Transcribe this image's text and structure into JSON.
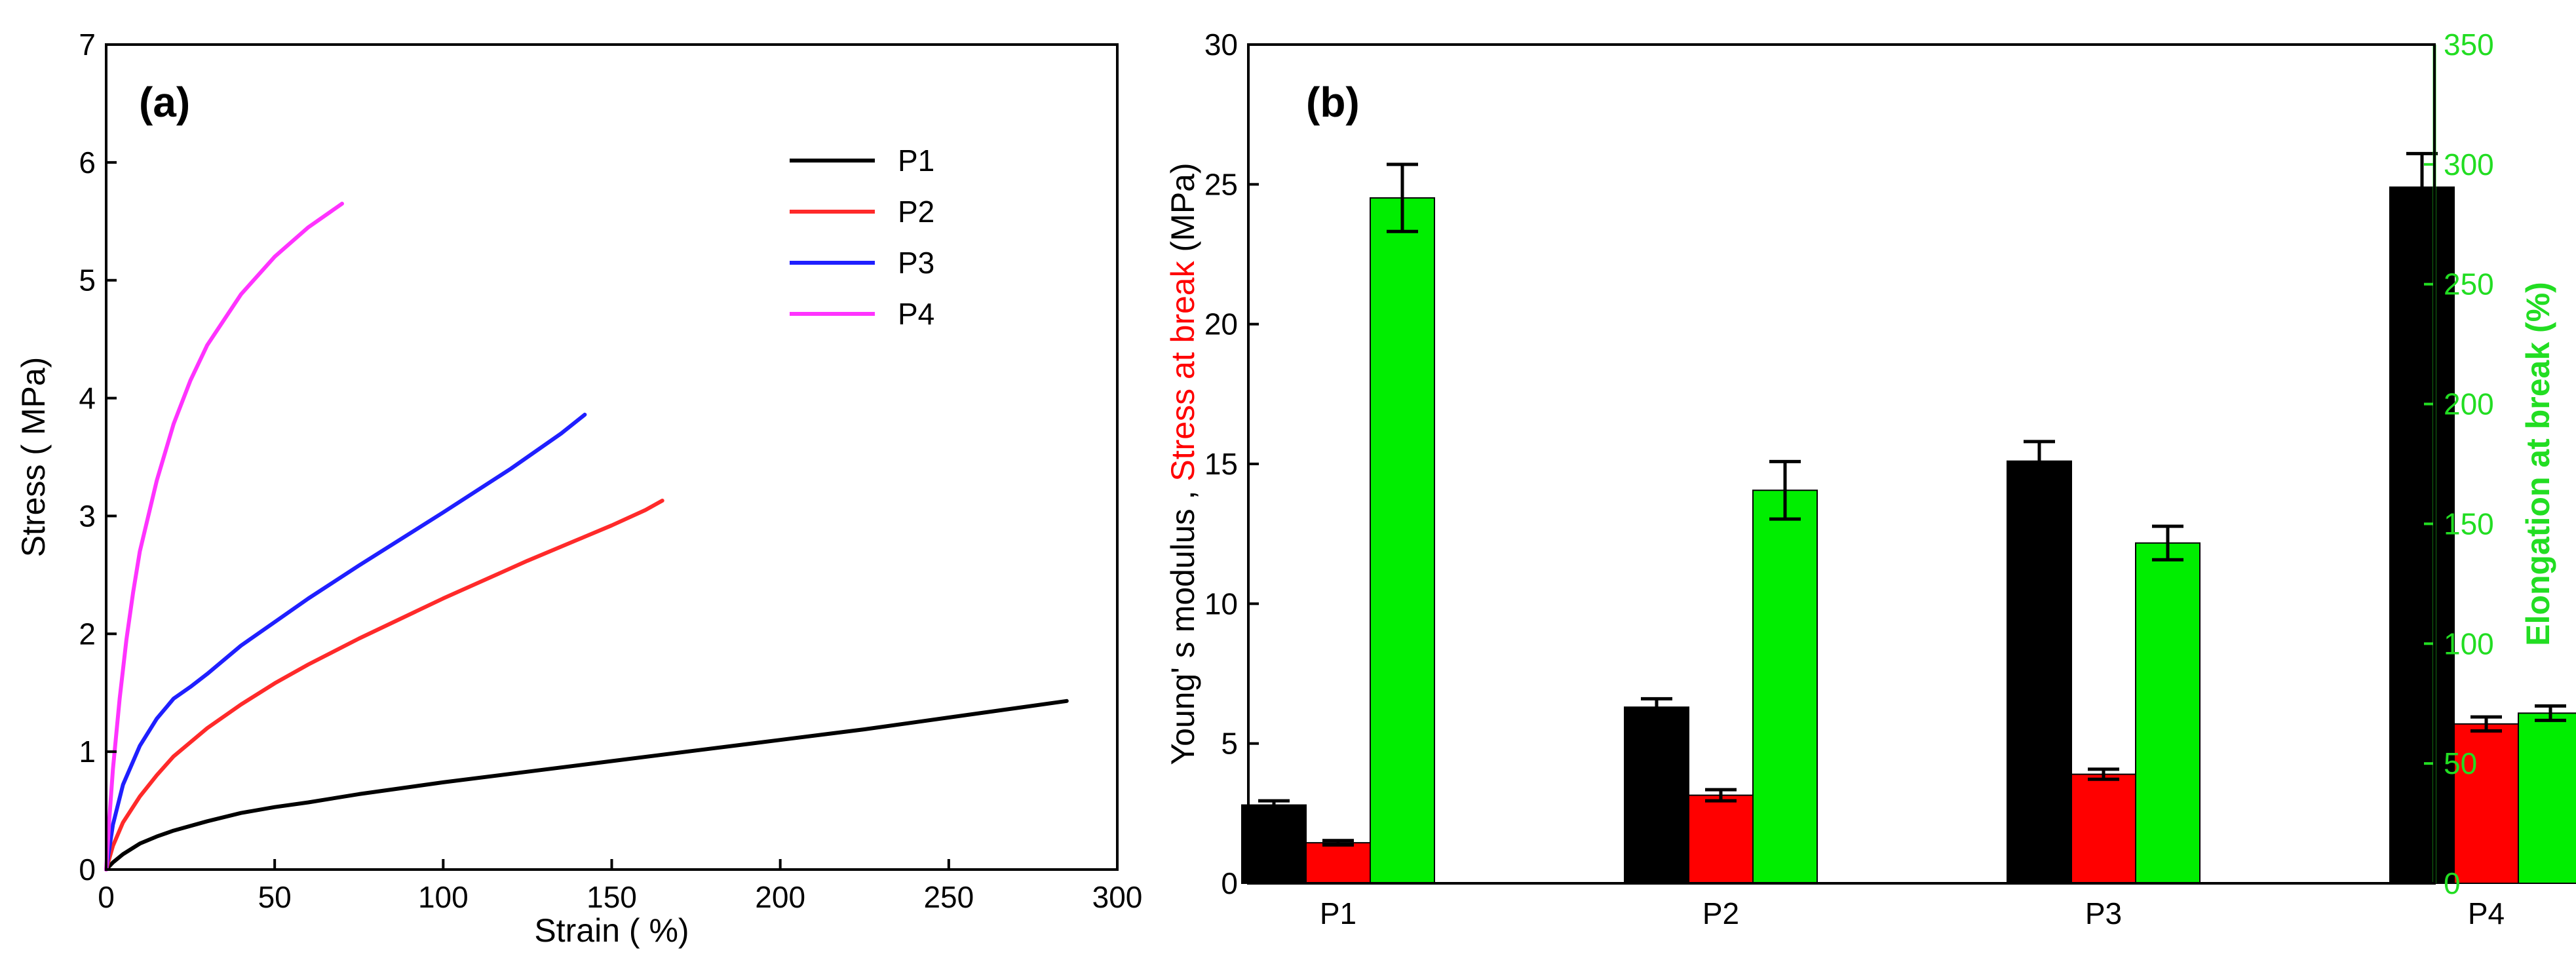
{
  "colors": {
    "P1": "#000000",
    "P2": "#ff2a2a",
    "P3": "#1f1fff",
    "P4": "#ff33ff",
    "bar_modulus": "#000000",
    "bar_stress": "#ff0000",
    "bar_elongation": "#00ee00",
    "stress_label": "#ff0000",
    "right_axis": "#22dd22"
  },
  "chart_data": [
    {
      "type": "line",
      "panel_label": "(a)",
      "title": "",
      "xlabel": "Strain ( %)",
      "ylabel": "Stress ( MPa)",
      "xlim": [
        0,
        300
      ],
      "ylim": [
        0,
        7
      ],
      "xticks": [
        "0",
        "50",
        "100",
        "150",
        "200",
        "250",
        "300"
      ],
      "yticks": [
        "0",
        "1",
        "2",
        "3",
        "4",
        "5",
        "6",
        "7"
      ],
      "grid": false,
      "legend_position": "top-right",
      "series": [
        {
          "name": "P1",
          "x": [
            0,
            2,
            5,
            10,
            15,
            20,
            30,
            40,
            50,
            60,
            75,
            100,
            125,
            150,
            175,
            200,
            225,
            250,
            270,
            285
          ],
          "y": [
            0,
            0.06,
            0.13,
            0.22,
            0.28,
            0.33,
            0.41,
            0.48,
            0.53,
            0.57,
            0.64,
            0.74,
            0.83,
            0.92,
            1.01,
            1.1,
            1.19,
            1.29,
            1.37,
            1.43
          ]
        },
        {
          "name": "P2",
          "x": [
            0,
            2,
            5,
            10,
            15,
            20,
            30,
            40,
            50,
            60,
            75,
            100,
            125,
            140,
            150,
            160,
            165
          ],
          "y": [
            0,
            0.2,
            0.4,
            0.62,
            0.8,
            0.96,
            1.2,
            1.4,
            1.58,
            1.74,
            1.96,
            2.3,
            2.62,
            2.8,
            2.92,
            3.05,
            3.13
          ]
        },
        {
          "name": "P3",
          "x": [
            0,
            2,
            5,
            10,
            15,
            20,
            25,
            30,
            40,
            50,
            60,
            75,
            100,
            120,
            135,
            142
          ],
          "y": [
            0,
            0.38,
            0.72,
            1.05,
            1.28,
            1.45,
            1.55,
            1.66,
            1.9,
            2.1,
            2.3,
            2.58,
            3.03,
            3.4,
            3.7,
            3.86
          ]
        },
        {
          "name": "P4",
          "x": [
            0,
            1,
            2,
            4,
            6,
            8,
            10,
            15,
            20,
            25,
            30,
            40,
            50,
            60,
            70
          ],
          "y": [
            0,
            0.45,
            0.85,
            1.45,
            1.95,
            2.35,
            2.7,
            3.3,
            3.78,
            4.15,
            4.45,
            4.88,
            5.2,
            5.45,
            5.65
          ]
        }
      ]
    },
    {
      "type": "bar",
      "panel_label": "(b)",
      "title": "",
      "ylabel_left_parts": [
        "Young' s modulus , ",
        "Stress at break",
        " (MPa)"
      ],
      "ylabel_right": "Elongation at break (%)",
      "categories": [
        "P1",
        "P2",
        "P3",
        "P4"
      ],
      "ylim_left": [
        0,
        30
      ],
      "ylim_right": [
        0,
        350
      ],
      "yticks_left": [
        "0",
        "5",
        "10",
        "15",
        "20",
        "25",
        "30"
      ],
      "yticks_right": [
        "0",
        "50",
        "100",
        "150",
        "200",
        "250",
        "300",
        "350"
      ],
      "grid": false,
      "series": [
        {
          "key": "modulus",
          "axis": "left",
          "values": [
            2.8,
            6.3,
            15.1,
            24.9
          ],
          "errors": [
            0.15,
            0.3,
            0.7,
            1.2
          ]
        },
        {
          "key": "stress",
          "axis": "left",
          "values": [
            1.45,
            3.15,
            3.9,
            5.7
          ],
          "errors": [
            0.08,
            0.2,
            0.18,
            0.25
          ]
        },
        {
          "key": "elongation",
          "axis": "right",
          "values": [
            286,
            164,
            142,
            71
          ],
          "errors": [
            14,
            12,
            7,
            3
          ]
        }
      ]
    }
  ]
}
